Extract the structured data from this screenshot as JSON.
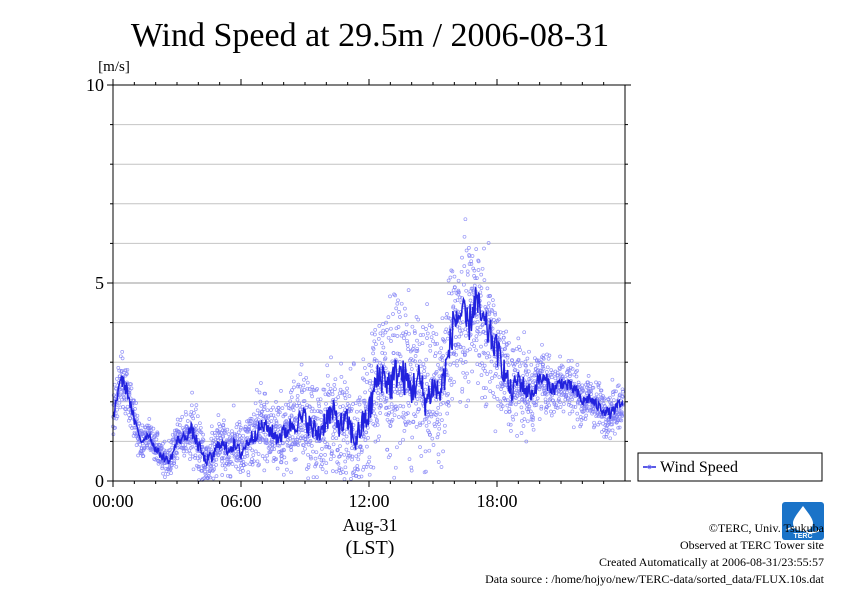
{
  "chart_data": {
    "type": "scatter",
    "title": "Wind Speed at 29.5m / 2006-08-31",
    "y_unit": "[m/s]",
    "ylim": [
      0,
      10
    ],
    "xlim": [
      "00:00",
      "24:00"
    ],
    "y_ticks": [
      "0",
      "5",
      "10"
    ],
    "x_ticks": [
      "00:00",
      "06:00",
      "12:00",
      "18:00"
    ],
    "xlabel_date": "Aug-31",
    "xlabel_tz": "(LST)",
    "grid": true,
    "legend_position": "right-bottom-outside",
    "series": [
      {
        "name": "Wind Speed",
        "style": "scatter+smoothed-line",
        "color": "#2222dd",
        "point_color": "#7d7df5",
        "x": [
          "00:00",
          "00:20",
          "00:40",
          "01:00",
          "01:20",
          "01:40",
          "02:00",
          "02:20",
          "02:40",
          "03:00",
          "03:20",
          "03:40",
          "04:00",
          "04:20",
          "04:40",
          "05:00",
          "05:20",
          "05:40",
          "06:00",
          "06:20",
          "06:40",
          "07:00",
          "07:20",
          "07:40",
          "08:00",
          "08:20",
          "08:40",
          "09:00",
          "09:20",
          "09:40",
          "10:00",
          "10:20",
          "10:40",
          "11:00",
          "11:20",
          "11:40",
          "12:00",
          "12:20",
          "12:40",
          "13:00",
          "13:20",
          "13:40",
          "14:00",
          "14:20",
          "14:40",
          "15:00",
          "15:20",
          "15:40",
          "16:00",
          "16:20",
          "16:40",
          "17:00",
          "17:20",
          "17:40",
          "18:00",
          "18:20",
          "18:40",
          "19:00",
          "19:20",
          "19:40",
          "20:00",
          "20:20",
          "20:40",
          "21:00",
          "21:20",
          "21:40",
          "22:00",
          "22:20",
          "22:40",
          "23:00",
          "23:20",
          "23:40"
        ],
        "y": [
          1.5,
          2.6,
          2.3,
          1.5,
          1.0,
          1.2,
          0.8,
          0.6,
          0.5,
          1.0,
          1.1,
          1.3,
          0.9,
          0.5,
          0.6,
          1.0,
          0.8,
          0.9,
          0.7,
          1.0,
          1.2,
          1.4,
          1.3,
          1.1,
          1.2,
          1.4,
          1.5,
          1.6,
          1.3,
          1.2,
          1.6,
          1.7,
          1.4,
          1.5,
          1.0,
          1.4,
          1.7,
          2.5,
          2.7,
          2.4,
          2.8,
          2.6,
          2.3,
          2.6,
          2.0,
          2.4,
          2.2,
          3.0,
          4.1,
          4.2,
          3.9,
          4.6,
          4.0,
          3.7,
          3.3,
          2.8,
          2.2,
          2.6,
          2.3,
          2.2,
          2.6,
          2.5,
          2.3,
          2.5,
          2.4,
          2.3,
          2.0,
          2.1,
          1.9,
          1.8,
          1.7,
          1.9
        ],
        "scatter_spread": [
          0.4,
          0.5,
          0.5,
          0.4,
          0.3,
          0.3,
          0.3,
          0.3,
          0.3,
          0.4,
          0.4,
          0.5,
          0.5,
          0.4,
          0.5,
          0.5,
          0.5,
          0.5,
          0.5,
          0.5,
          0.6,
          0.6,
          0.6,
          0.6,
          0.7,
          0.7,
          0.8,
          0.9,
          0.9,
          0.9,
          1.0,
          1.0,
          1.0,
          1.0,
          1.0,
          1.0,
          1.2,
          1.3,
          1.3,
          1.3,
          1.3,
          1.3,
          1.3,
          1.2,
          1.2,
          1.2,
          1.2,
          1.2,
          1.4,
          1.4,
          1.3,
          1.3,
          1.3,
          1.2,
          1.1,
          1.0,
          0.9,
          0.8,
          0.8,
          0.6,
          0.6,
          0.6,
          0.5,
          0.5,
          0.5,
          0.5,
          0.4,
          0.4,
          0.4,
          0.4,
          0.4,
          0.4
        ]
      }
    ]
  },
  "legend": {
    "label": "Wind Speed"
  },
  "footer": {
    "copyright": "©TERC, Univ. Tsukuba",
    "observed": "Observed at TERC Tower site",
    "created": "Created Automatically at 2006-08-31/23:55:57",
    "source": "Data source : /home/hojyo/new/TERC-data/sorted_data/FLUX.10s.dat"
  },
  "logo": {
    "text": "TERC",
    "icon": "terc-logo-icon",
    "color": "#1a73c8"
  }
}
